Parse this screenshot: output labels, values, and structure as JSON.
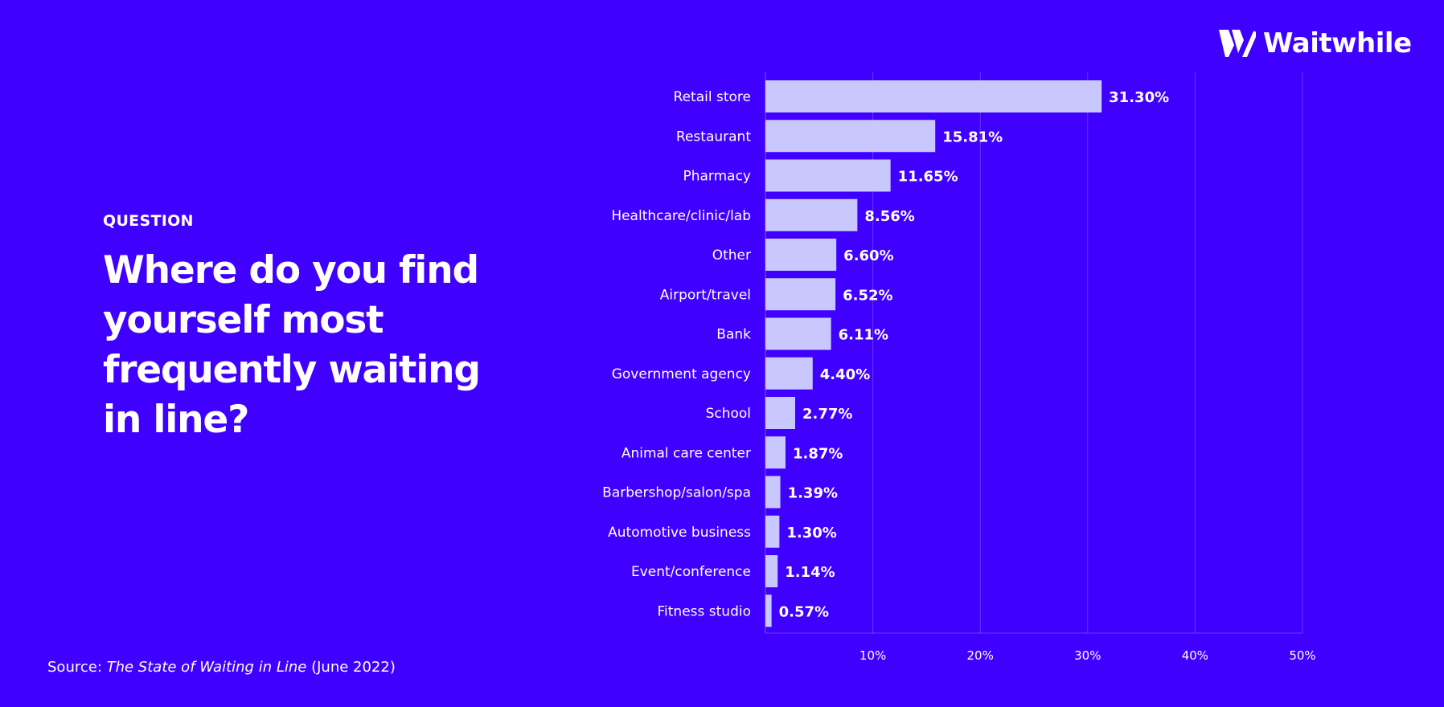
{
  "brand": {
    "name": "Waitwhile",
    "logo_icon": "waitwhile-w-icon"
  },
  "question": {
    "label": "QUESTION",
    "title": "Where do you find yourself most frequently waiting in line?"
  },
  "source": {
    "prefix": "Source: ",
    "title": "The State of Waiting in Line",
    "suffix": " (June 2022)"
  },
  "colors": {
    "background": "#4000ff",
    "bar": "#c8c8ff",
    "text": "#ffffff"
  },
  "chart_data": {
    "type": "bar",
    "orientation": "horizontal",
    "categories": [
      "Retail store",
      "Restaurant",
      "Pharmacy",
      "Healthcare/clinic/lab",
      "Other",
      "Airport/travel",
      "Bank",
      "Government agency",
      "School",
      "Animal care center",
      "Barbershop/salon/spa",
      "Automotive business",
      "Event/conference",
      "Fitness studio"
    ],
    "values": [
      31.3,
      15.81,
      11.65,
      8.56,
      6.6,
      6.52,
      6.11,
      4.4,
      2.77,
      1.87,
      1.39,
      1.3,
      1.14,
      0.57
    ],
    "value_labels": [
      "31.30%",
      "15.81%",
      "11.65%",
      "8.56%",
      "6.60%",
      "6.52%",
      "6.11%",
      "4.40%",
      "2.77%",
      "1.87%",
      "1.39%",
      "1.30%",
      "1.14%",
      "0.57%"
    ],
    "xlim": [
      0,
      50
    ],
    "xticks": [
      10,
      20,
      30,
      40,
      50
    ],
    "xtick_labels": [
      "10%",
      "20%",
      "30%",
      "40%",
      "50%"
    ],
    "grid": true,
    "legend": "none"
  }
}
